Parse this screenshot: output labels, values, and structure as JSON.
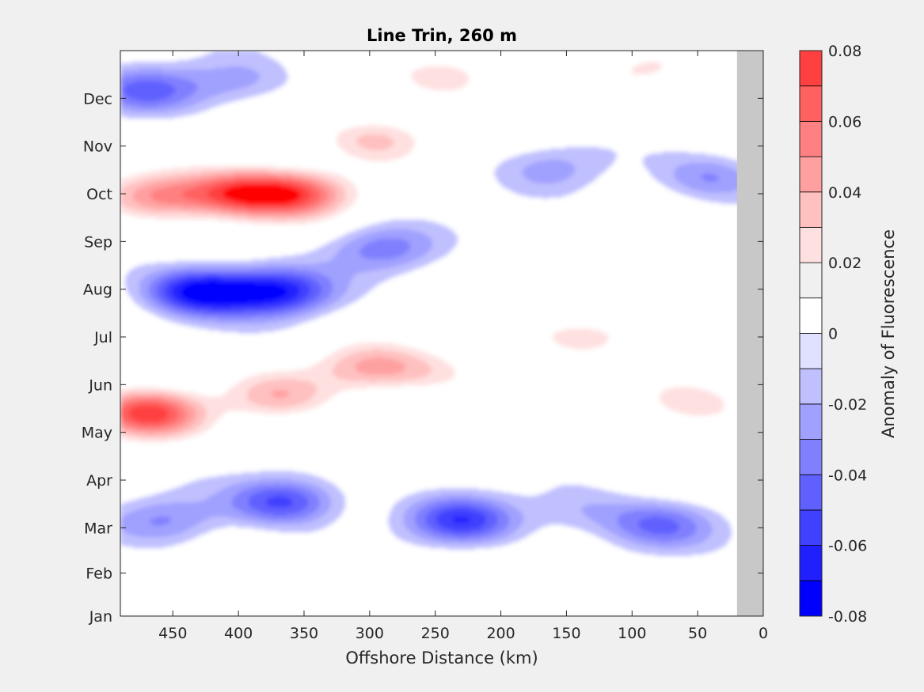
{
  "chart_data": {
    "type": "heatmap",
    "subtype": "filled-contour",
    "title": "Line Trin, 260 m",
    "xlabel": "Offshore Distance (km)",
    "ylabel": "",
    "colorbar_label": "Anomaly of Fluorescence",
    "xlim": [
      490,
      0
    ],
    "x_reversed": true,
    "x_ticks": [
      450,
      400,
      350,
      300,
      250,
      200,
      150,
      100,
      50,
      0
    ],
    "y_ticks": [
      "Jan",
      "Feb",
      "Mar",
      "Apr",
      "May",
      "Jun",
      "Jul",
      "Aug",
      "Sep",
      "Oct",
      "Nov",
      "Dec"
    ],
    "y_tick_values": [
      0,
      0.9,
      1.85,
      2.85,
      3.85,
      4.85,
      5.85,
      6.85,
      7.85,
      8.85,
      9.85,
      10.85
    ],
    "ylim": [
      0,
      11.85
    ],
    "colorbar": {
      "range": [
        -0.08,
        0.08
      ],
      "ticks": [
        "0.08",
        "0.06",
        "0.04",
        "0.02",
        "0",
        "-0.02",
        "-0.04",
        "-0.06",
        "-0.08"
      ],
      "tick_values": [
        0.08,
        0.06,
        0.04,
        0.02,
        0,
        -0.02,
        -0.04,
        -0.06,
        -0.08
      ],
      "levels": [
        -0.08,
        -0.07,
        -0.06,
        -0.05,
        -0.04,
        -0.03,
        -0.02,
        -0.01,
        0.01,
        0.02,
        0.03,
        0.04,
        0.05,
        0.06,
        0.07,
        0.08
      ],
      "colors": [
        "#0000ff",
        "#2020ff",
        "#4040ff",
        "#6060ff",
        "#8080ff",
        "#a0a0ff",
        "#c0c0ff",
        "#e0e0ff",
        "#ffffff",
        "#ffe0e0",
        "#ffc0c0",
        "#ffa0a0",
        "#ff8080",
        "#ff6060",
        "#ff4040",
        "#ff0000"
      ]
    },
    "no_data_region": {
      "x_range": [
        20,
        0
      ],
      "color": "#c8c8c8"
    },
    "features": [
      {
        "x": 470,
        "y": 4.25,
        "value": 0.075
      },
      {
        "x": 400,
        "y": 8.85,
        "value": 0.065
      },
      {
        "x": 355,
        "y": 8.85,
        "value": 0.06
      },
      {
        "x": 460,
        "y": 8.8,
        "value": 0.05
      },
      {
        "x": 295,
        "y": 10.0,
        "value": 0.035
      },
      {
        "x": 240,
        "y": 11.3,
        "value": 0.03
      },
      {
        "x": 300,
        "y": 5.2,
        "value": 0.04
      },
      {
        "x": 370,
        "y": 4.6,
        "value": 0.035
      },
      {
        "x": 250,
        "y": 5.1,
        "value": 0.02
      },
      {
        "x": 160,
        "y": 5.8,
        "value": 0.015
      },
      {
        "x": 180,
        "y": 7.3,
        "value": 0.015
      },
      {
        "x": 120,
        "y": 6.0,
        "value": 0.015
      },
      {
        "x": 55,
        "y": 4.5,
        "value": 0.03
      },
      {
        "x": 85,
        "y": 11.5,
        "value": 0.02
      },
      {
        "x": 430,
        "y": 6.8,
        "value": -0.075
      },
      {
        "x": 370,
        "y": 6.8,
        "value": -0.065
      },
      {
        "x": 290,
        "y": 7.7,
        "value": -0.035
      },
      {
        "x": 365,
        "y": 2.4,
        "value": -0.055
      },
      {
        "x": 230,
        "y": 2.0,
        "value": -0.055
      },
      {
        "x": 455,
        "y": 2.0,
        "value": -0.03
      },
      {
        "x": 80,
        "y": 1.9,
        "value": -0.04
      },
      {
        "x": 140,
        "y": 2.2,
        "value": -0.02
      },
      {
        "x": 470,
        "y": 11.0,
        "value": -0.04
      },
      {
        "x": 400,
        "y": 11.2,
        "value": -0.025
      },
      {
        "x": 160,
        "y": 9.4,
        "value": -0.022
      },
      {
        "x": 40,
        "y": 9.2,
        "value": -0.032
      },
      {
        "x": 450,
        "y": 0.5,
        "value": -0.012
      },
      {
        "x": 250,
        "y": 0.2,
        "value": 0.015
      }
    ]
  }
}
